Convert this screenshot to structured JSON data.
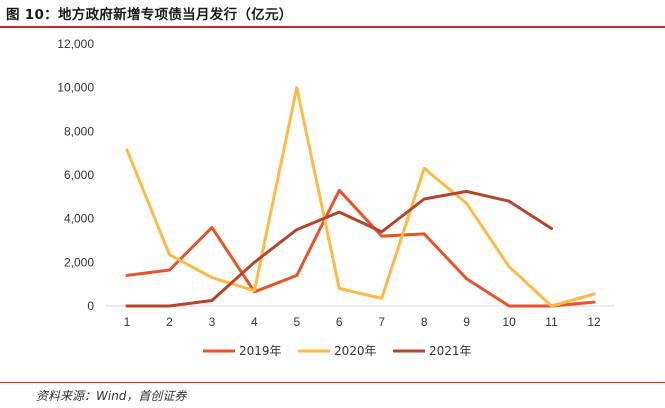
{
  "title": "图 10：地方政府新增专项债当月发行（亿元）",
  "source": "资料来源：Wind，首创证券",
  "chart_data": {
    "type": "line",
    "title": "图 10：地方政府新增专项债当月发行（亿元）",
    "xlabel": "",
    "ylabel": "",
    "categories": [
      "1",
      "2",
      "3",
      "4",
      "5",
      "6",
      "7",
      "8",
      "9",
      "10",
      "11",
      "12"
    ],
    "ylim": [
      0,
      12000
    ],
    "yticks": [
      "0",
      "2,000",
      "4,000",
      "6,000",
      "8,000",
      "10,000",
      "12,000"
    ],
    "ytick_values": [
      0,
      2000,
      4000,
      6000,
      8000,
      10000,
      12000
    ],
    "grid": false,
    "legend_position": "bottom",
    "series": [
      {
        "name": "2019年",
        "color": "#e8532a",
        "values": [
          1400,
          1650,
          3600,
          650,
          1400,
          5300,
          3200,
          3300,
          1250,
          0,
          0,
          180
        ]
      },
      {
        "name": "2020年",
        "color": "#fdbb45",
        "values": [
          7150,
          2350,
          1300,
          700,
          10000,
          800,
          350,
          6300,
          4700,
          1800,
          0,
          550
        ]
      },
      {
        "name": "2021年",
        "color": "#b5452a",
        "values": [
          0,
          0,
          250,
          2000,
          3500,
          4300,
          3400,
          4900,
          5250,
          4800,
          3550,
          null
        ]
      }
    ]
  }
}
